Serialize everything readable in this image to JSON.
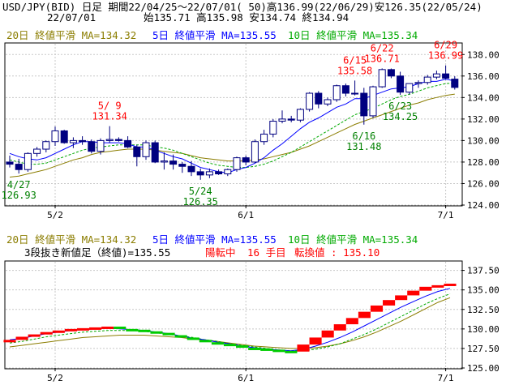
{
  "header": {
    "line1": "USD/JPY(BID) 日足 期間22/04/25～22/07/01( 50)高136.99(22/06/29)安126.35(22/05/24)",
    "date": "22/07/01",
    "ohlc": "始135.71 高135.98 安134.74 終134.94"
  },
  "ma_legend": {
    "ma20": "20日 終値平滑 MA=134.32",
    "ma5": "5日 終値平滑 MA=135.55",
    "ma10": "10日 終値平滑 MA=135.34"
  },
  "sanbon_legend": {
    "label": "3段抜き新値足（終値)=135.55",
    "status": "陽転中",
    "count": "16 手目",
    "reversal": "転換値 : 135.10"
  },
  "colors": {
    "ma5": "#0000ff",
    "ma10": "#00aa00",
    "ma20": "#8b7d00",
    "bull": "#ffffff",
    "bear": "#000080",
    "brick_up": "#ff0000",
    "brick_down": "#00cc00",
    "annot_high": "#ff0000",
    "annot_low": "#008000"
  },
  "chart_data": [
    {
      "type": "candlestick",
      "x_tick_labels": [
        "5/2",
        "6/1",
        "7/1"
      ],
      "y_ticks": [
        "124.00",
        "126.00",
        "128.00",
        "130.00",
        "132.00",
        "134.00",
        "136.00",
        "138.00"
      ],
      "ylim": [
        124,
        139
      ],
      "ohlc": [
        [
          128.0,
          128.6,
          127.5,
          127.8
        ],
        [
          127.8,
          128.3,
          126.93,
          127.3
        ],
        [
          127.3,
          128.9,
          127.1,
          128.8
        ],
        [
          128.8,
          129.4,
          128.5,
          129.2
        ],
        [
          129.2,
          130.0,
          128.9,
          129.9
        ],
        [
          129.9,
          131.3,
          129.5,
          130.9
        ],
        [
          130.9,
          131.0,
          129.7,
          129.8
        ],
        [
          129.8,
          130.3,
          129.3,
          130.0
        ],
        [
          130.0,
          130.4,
          129.6,
          129.9
        ],
        [
          129.9,
          130.1,
          128.8,
          129.0
        ],
        [
          129.0,
          130.2,
          128.7,
          130.0
        ],
        [
          130.0,
          131.34,
          129.8,
          130.1
        ],
        [
          130.1,
          130.3,
          129.9,
          130.0
        ],
        [
          130.0,
          130.4,
          129.3,
          129.4
        ],
        [
          129.4,
          129.6,
          127.6,
          128.5
        ],
        [
          128.5,
          130.0,
          128.2,
          129.8
        ],
        [
          129.8,
          130.0,
          127.9,
          128.0
        ],
        [
          128.0,
          128.9,
          127.3,
          128.1
        ],
        [
          128.1,
          128.7,
          127.3,
          127.8
        ],
        [
          127.8,
          128.0,
          127.0,
          127.6
        ],
        [
          127.6,
          128.1,
          126.7,
          127.1
        ],
        [
          127.1,
          127.4,
          126.35,
          126.8
        ],
        [
          126.8,
          127.4,
          126.5,
          127.1
        ],
        [
          127.1,
          127.3,
          126.8,
          126.9
        ],
        [
          126.9,
          127.4,
          126.7,
          127.3
        ],
        [
          127.3,
          128.5,
          127.1,
          128.4
        ],
        [
          128.4,
          128.6,
          127.7,
          128.0
        ],
        [
          128.0,
          130.1,
          127.9,
          129.9
        ],
        [
          129.9,
          131.0,
          129.6,
          130.6
        ],
        [
          130.6,
          132.0,
          130.3,
          131.8
        ],
        [
          131.8,
          132.8,
          131.6,
          132.0
        ],
        [
          132.0,
          132.3,
          131.7,
          131.9
        ],
        [
          131.9,
          133.0,
          131.7,
          132.9
        ],
        [
          132.9,
          134.5,
          132.7,
          134.4
        ],
        [
          134.4,
          134.6,
          133.0,
          133.4
        ],
        [
          133.4,
          134.0,
          133.2,
          133.8
        ],
        [
          133.8,
          135.2,
          133.6,
          135.1
        ],
        [
          135.1,
          135.3,
          134.1,
          134.4
        ],
        [
          134.4,
          135.58,
          134.2,
          134.4
        ],
        [
          134.4,
          134.9,
          131.48,
          132.3
        ],
        [
          132.3,
          135.1,
          132.1,
          135.0
        ],
        [
          135.0,
          136.71,
          134.9,
          136.6
        ],
        [
          136.6,
          136.7,
          135.8,
          136.0
        ],
        [
          136.0,
          136.4,
          134.25,
          134.5
        ],
        [
          134.5,
          135.3,
          134.3,
          135.3
        ],
        [
          135.3,
          135.6,
          134.9,
          135.4
        ],
        [
          135.4,
          136.1,
          135.2,
          135.9
        ],
        [
          135.9,
          136.5,
          135.7,
          136.2
        ],
        [
          136.2,
          136.99,
          135.7,
          135.8
        ],
        [
          135.71,
          135.98,
          134.74,
          134.94
        ]
      ],
      "ma5": [
        128.8,
        128.5,
        128.3,
        128.2,
        128.4,
        128.8,
        129.2,
        129.6,
        129.9,
        129.9,
        129.8,
        129.8,
        129.8,
        129.7,
        129.4,
        129.4,
        129.1,
        128.8,
        128.5,
        128.3,
        127.9,
        127.5,
        127.3,
        127.1,
        127.0,
        127.3,
        127.5,
        127.9,
        128.4,
        129.1,
        129.7,
        130.4,
        131.1,
        131.7,
        132.1,
        132.6,
        133.1,
        133.4,
        133.9,
        133.9,
        134.2,
        134.5,
        134.8,
        134.9,
        135.0,
        135.3,
        135.5,
        135.5,
        135.7,
        135.55
      ],
      "ma10": [
        128.2,
        128.0,
        127.8,
        127.8,
        127.9,
        128.2,
        128.5,
        128.8,
        129.1,
        129.3,
        129.4,
        129.5,
        129.6,
        129.6,
        129.6,
        129.6,
        129.4,
        129.3,
        129.1,
        128.8,
        128.5,
        128.2,
        127.9,
        127.7,
        127.6,
        127.5,
        127.5,
        127.6,
        127.8,
        128.1,
        128.5,
        128.9,
        129.4,
        129.9,
        130.4,
        130.9,
        131.4,
        131.9,
        132.4,
        132.7,
        133.0,
        133.4,
        133.8,
        134.1,
        134.3,
        134.6,
        134.9,
        135.1,
        135.3,
        135.34
      ],
      "ma20": [
        126.6,
        126.7,
        126.9,
        127.1,
        127.3,
        127.6,
        127.9,
        128.2,
        128.4,
        128.7,
        128.9,
        129.0,
        129.1,
        129.2,
        129.2,
        129.2,
        129.1,
        129.0,
        128.9,
        128.8,
        128.6,
        128.4,
        128.3,
        128.2,
        128.1,
        128.1,
        128.1,
        128.2,
        128.3,
        128.5,
        128.7,
        128.9,
        129.2,
        129.5,
        129.9,
        130.3,
        130.7,
        131.1,
        131.5,
        131.8,
        132.1,
        132.4,
        132.7,
        133.0,
        133.3,
        133.5,
        133.8,
        134.0,
        134.2,
        134.32
      ],
      "annotations": [
        {
          "date": "5/ 9",
          "value": "131.34",
          "kind": "high",
          "index": 11
        },
        {
          "date": "4/27",
          "value": "126.93",
          "kind": "low",
          "index": 1
        },
        {
          "date": "5/24",
          "value": "126.35",
          "kind": "low",
          "index": 21
        },
        {
          "date": "6/15",
          "value": "135.58",
          "kind": "high",
          "index": 38
        },
        {
          "date": "6/16",
          "value": "131.48",
          "kind": "low",
          "index": 39
        },
        {
          "date": "6/22",
          "value": "136.71",
          "kind": "high",
          "index": 41
        },
        {
          "date": "6/23",
          "value": "134.25",
          "kind": "low",
          "index": 43
        },
        {
          "date": "6/29",
          "value": "136.99",
          "kind": "high",
          "index": 48
        }
      ]
    },
    {
      "type": "bricks",
      "x_tick_labels": [
        "5/2",
        "6/1",
        "7/1"
      ],
      "y_ticks": [
        "125.00",
        "127.50",
        "130.00",
        "132.50",
        "135.00",
        "137.50"
      ],
      "ylim": [
        125,
        138.6
      ],
      "bricks": [
        {
          "dir": "up",
          "lo": 128.3,
          "hi": 128.6
        },
        {
          "dir": "up",
          "lo": 128.6,
          "hi": 129.0
        },
        {
          "dir": "up",
          "lo": 129.0,
          "hi": 129.3
        },
        {
          "dir": "up",
          "lo": 129.3,
          "hi": 129.6
        },
        {
          "dir": "up",
          "lo": 129.6,
          "hi": 129.8
        },
        {
          "dir": "up",
          "lo": 129.8,
          "hi": 130.0
        },
        {
          "dir": "up",
          "lo": 130.0,
          "hi": 130.1
        },
        {
          "dir": "up",
          "lo": 130.1,
          "hi": 130.2
        },
        {
          "dir": "up",
          "lo": 130.2,
          "hi": 130.3
        },
        {
          "dir": "down",
          "lo": 130.0,
          "hi": 130.3
        },
        {
          "dir": "down",
          "lo": 129.9,
          "hi": 130.0
        },
        {
          "dir": "down",
          "lo": 129.7,
          "hi": 129.9
        },
        {
          "dir": "down",
          "lo": 129.5,
          "hi": 129.7
        },
        {
          "dir": "down",
          "lo": 129.2,
          "hi": 129.5
        },
        {
          "dir": "down",
          "lo": 128.9,
          "hi": 129.2
        },
        {
          "dir": "down",
          "lo": 128.6,
          "hi": 128.9
        },
        {
          "dir": "down",
          "lo": 128.3,
          "hi": 128.6
        },
        {
          "dir": "down",
          "lo": 128.1,
          "hi": 128.3
        },
        {
          "dir": "down",
          "lo": 127.9,
          "hi": 128.1
        },
        {
          "dir": "down",
          "lo": 127.6,
          "hi": 127.9
        },
        {
          "dir": "down",
          "lo": 127.5,
          "hi": 127.6
        },
        {
          "dir": "down",
          "lo": 127.35,
          "hi": 127.5
        },
        {
          "dir": "down",
          "lo": 127.2,
          "hi": 127.35
        },
        {
          "dir": "down",
          "lo": 127.1,
          "hi": 127.2
        },
        {
          "dir": "up",
          "lo": 127.1,
          "hi": 128.0
        },
        {
          "dir": "up",
          "lo": 128.0,
          "hi": 128.9
        },
        {
          "dir": "up",
          "lo": 128.9,
          "hi": 129.8
        },
        {
          "dir": "up",
          "lo": 129.8,
          "hi": 130.6
        },
        {
          "dir": "up",
          "lo": 130.6,
          "hi": 131.4
        },
        {
          "dir": "up",
          "lo": 131.4,
          "hi": 132.2
        },
        {
          "dir": "up",
          "lo": 132.2,
          "hi": 133.0
        },
        {
          "dir": "up",
          "lo": 133.0,
          "hi": 133.7
        },
        {
          "dir": "up",
          "lo": 133.7,
          "hi": 134.3
        },
        {
          "dir": "up",
          "lo": 134.3,
          "hi": 134.9
        },
        {
          "dir": "up",
          "lo": 134.9,
          "hi": 135.4
        },
        {
          "dir": "up",
          "lo": 135.4,
          "hi": 135.6
        },
        {
          "dir": "up",
          "lo": 135.6,
          "hi": 135.8
        }
      ],
      "ma5": [
        128.6,
        128.8,
        129.1,
        129.4,
        129.6,
        129.8,
        129.9,
        130.0,
        130.1,
        130.0,
        129.9,
        129.8,
        129.6,
        129.4,
        129.1,
        128.8,
        128.6,
        128.3,
        128.1,
        127.8,
        127.6,
        127.4,
        127.3,
        127.2,
        127.4,
        127.8,
        128.3,
        128.9,
        129.6,
        130.4,
        131.2,
        132.0,
        132.8,
        133.5,
        134.2,
        134.8,
        135.2
      ],
      "ma10": [
        128.2,
        128.4,
        128.7,
        129.0,
        129.2,
        129.4,
        129.6,
        129.7,
        129.8,
        129.8,
        129.8,
        129.7,
        129.5,
        129.3,
        129.1,
        128.9,
        128.6,
        128.4,
        128.1,
        127.9,
        127.7,
        127.5,
        127.3,
        127.2,
        127.2,
        127.4,
        127.7,
        128.1,
        128.7,
        129.3,
        130.0,
        130.8,
        131.6,
        132.4,
        133.2,
        133.9,
        134.5
      ],
      "ma20": [
        127.7,
        127.9,
        128.1,
        128.3,
        128.5,
        128.7,
        128.9,
        129.0,
        129.1,
        129.2,
        129.2,
        129.2,
        129.1,
        129.0,
        128.9,
        128.7,
        128.6,
        128.4,
        128.2,
        128.0,
        127.8,
        127.7,
        127.6,
        127.5,
        127.5,
        127.6,
        127.8,
        128.1,
        128.5,
        129.0,
        129.6,
        130.3,
        131.0,
        131.8,
        132.6,
        133.4,
        134.0
      ]
    }
  ]
}
